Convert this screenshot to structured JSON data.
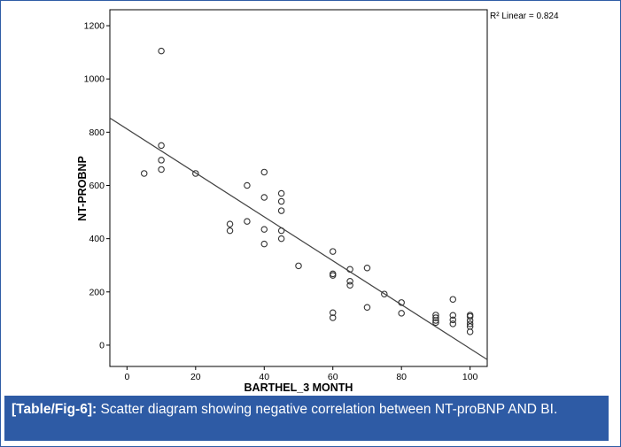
{
  "chart_data": {
    "type": "scatter",
    "title": "",
    "xlabel": "BARTHEL_3 MONTH",
    "ylabel": "NT-PROBNP",
    "xlim": [
      -5,
      105
    ],
    "ylim": [
      -80,
      1260
    ],
    "x_ticks": [
      "0",
      "20",
      "40",
      "60",
      "80",
      "100"
    ],
    "y_ticks": [
      "0",
      "200",
      "400",
      "600",
      "800",
      "1000",
      "1200"
    ],
    "grid": false,
    "annotation": "R² Linear = 0.824",
    "fit_line": {
      "intercept": 812,
      "slope": -8.25
    },
    "points": [
      [
        5,
        645
      ],
      [
        10,
        1105
      ],
      [
        10,
        750
      ],
      [
        10,
        695
      ],
      [
        10,
        660
      ],
      [
        20,
        645
      ],
      [
        30,
        455
      ],
      [
        30,
        430
      ],
      [
        35,
        600
      ],
      [
        35,
        465
      ],
      [
        40,
        650
      ],
      [
        40,
        555
      ],
      [
        40,
        435
      ],
      [
        40,
        380
      ],
      [
        45,
        570
      ],
      [
        45,
        540
      ],
      [
        45,
        505
      ],
      [
        45,
        430
      ],
      [
        45,
        400
      ],
      [
        50,
        298
      ],
      [
        60,
        352
      ],
      [
        60,
        268
      ],
      [
        60,
        262
      ],
      [
        60,
        122
      ],
      [
        60,
        103
      ],
      [
        65,
        285
      ],
      [
        65,
        240
      ],
      [
        65,
        225
      ],
      [
        70,
        290
      ],
      [
        70,
        142
      ],
      [
        75,
        192
      ],
      [
        80,
        160
      ],
      [
        80,
        120
      ],
      [
        90,
        113
      ],
      [
        90,
        103
      ],
      [
        90,
        93
      ],
      [
        90,
        85
      ],
      [
        95,
        172
      ],
      [
        95,
        112
      ],
      [
        95,
        95
      ],
      [
        95,
        80
      ],
      [
        100,
        113
      ],
      [
        100,
        108
      ],
      [
        100,
        93
      ],
      [
        100,
        80
      ],
      [
        100,
        70
      ],
      [
        100,
        50
      ]
    ]
  },
  "caption": {
    "label": "[Table/Fig-6]:",
    "text": "Scatter diagram showing negative correlation between NT-proBNP AND BI."
  },
  "colors": {
    "caption_background": "#2e5ba5",
    "frame_border": "#2f5da6",
    "plot_border": "#000000",
    "marker": "#333333",
    "fit_line": "#444444"
  }
}
